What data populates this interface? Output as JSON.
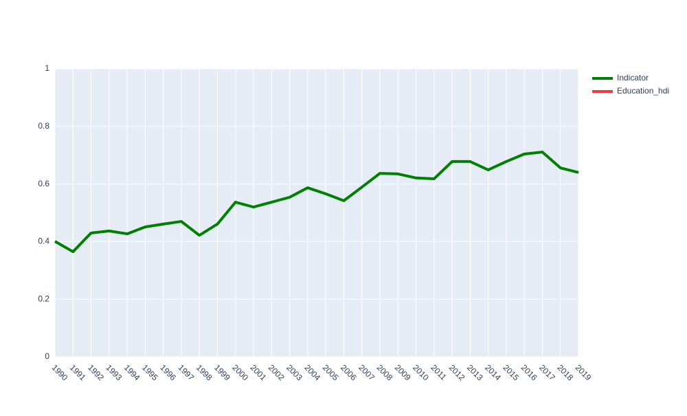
{
  "chart_data": {
    "type": "line",
    "x": [
      1990,
      1991,
      1992,
      1993,
      1994,
      1995,
      1996,
      1997,
      1998,
      1999,
      2000,
      2001,
      2002,
      2003,
      2004,
      2005,
      2006,
      2007,
      2008,
      2009,
      2010,
      2011,
      2012,
      2013,
      2014,
      2015,
      2016,
      2017,
      2018,
      2019
    ],
    "series": [
      {
        "name": "Indicator",
        "color": "#008000",
        "values": [
          0.401,
          0.365,
          0.43,
          0.437,
          0.427,
          0.451,
          0.461,
          0.47,
          0.422,
          0.461,
          0.537,
          0.52,
          0.537,
          0.554,
          0.587,
          0.566,
          0.542,
          0.589,
          0.637,
          0.635,
          0.621,
          0.618,
          0.678,
          0.678,
          0.649,
          0.678,
          0.704,
          0.711,
          0.656,
          0.64
        ]
      },
      {
        "name": "Education_hdi",
        "color": "#ef3b3b",
        "values": [
          null,
          null,
          null,
          null,
          null,
          null,
          null,
          null,
          null,
          null,
          null,
          null,
          null,
          null,
          null,
          null,
          null,
          null,
          null,
          null,
          null,
          null,
          null,
          null,
          null,
          null,
          null,
          null,
          null,
          null
        ]
      }
    ],
    "xlim": [
      1990,
      2019
    ],
    "ylim": [
      0,
      1
    ],
    "yticks": [
      0,
      0.2,
      0.4,
      0.6,
      0.8,
      1
    ],
    "grid": true,
    "legend": "top-right"
  }
}
